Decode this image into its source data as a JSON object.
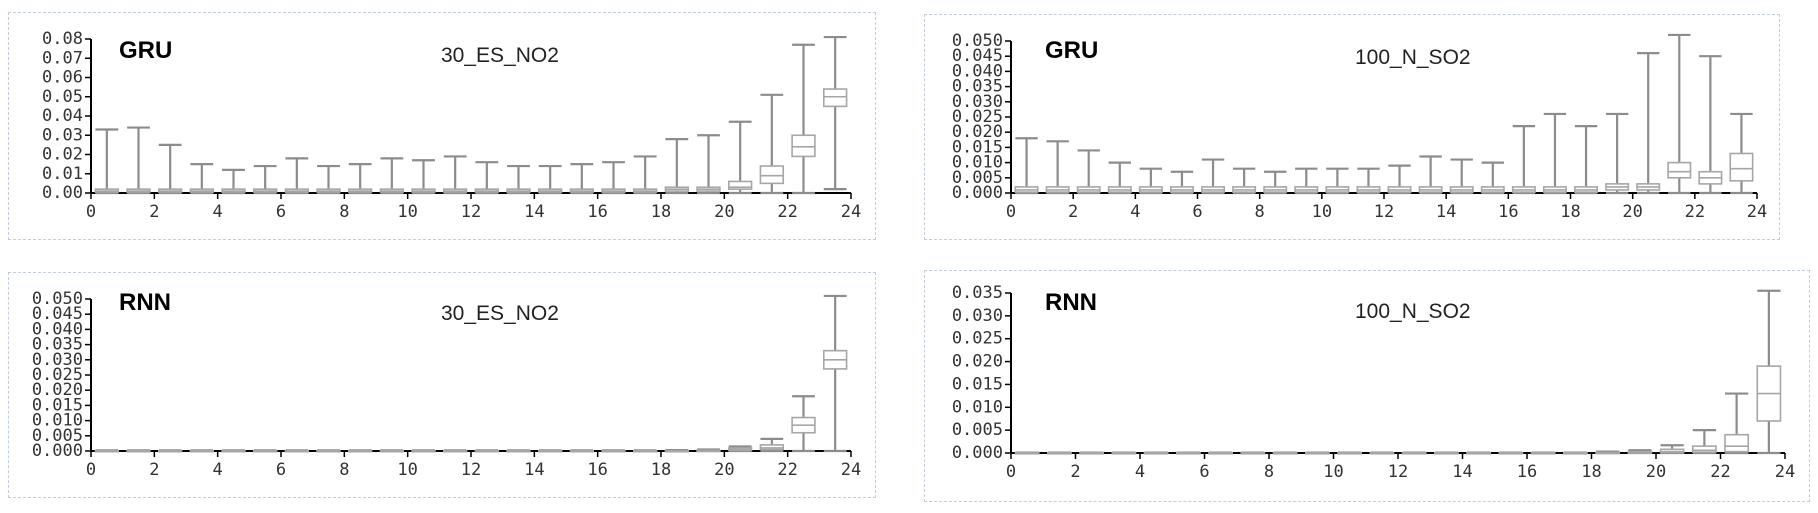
{
  "chart_data": [
    {
      "type": "box",
      "model": "GRU",
      "title": "30_ES_NO2",
      "xlabel": "",
      "ylabel": "",
      "xlim": [
        0,
        24
      ],
      "x_ticks": [
        0,
        2,
        4,
        6,
        8,
        10,
        12,
        14,
        16,
        18,
        20,
        22,
        24
      ],
      "ylim": [
        0,
        0.08
      ],
      "y_ticks": [
        "0.00",
        "0.01",
        "0.02",
        "0.03",
        "0.04",
        "0.05",
        "0.06",
        "0.07",
        "0.08"
      ],
      "y_tick_values": [
        0,
        0.01,
        0.02,
        0.03,
        0.04,
        0.05,
        0.06,
        0.07,
        0.08
      ],
      "grid": false,
      "boxes": [
        {
          "x": 0,
          "low": 0,
          "q1": 0.0005,
          "median": 0.001,
          "q3": 0.002,
          "high": 0.033
        },
        {
          "x": 1,
          "low": 0,
          "q1": 0.0005,
          "median": 0.001,
          "q3": 0.002,
          "high": 0.034
        },
        {
          "x": 2,
          "low": 0,
          "q1": 0.0005,
          "median": 0.001,
          "q3": 0.002,
          "high": 0.025
        },
        {
          "x": 3,
          "low": 0,
          "q1": 0.0005,
          "median": 0.001,
          "q3": 0.002,
          "high": 0.015
        },
        {
          "x": 4,
          "low": 0,
          "q1": 0.0005,
          "median": 0.001,
          "q3": 0.002,
          "high": 0.012
        },
        {
          "x": 5,
          "low": 0,
          "q1": 0.0005,
          "median": 0.001,
          "q3": 0.002,
          "high": 0.014
        },
        {
          "x": 6,
          "low": 0,
          "q1": 0.0005,
          "median": 0.001,
          "q3": 0.002,
          "high": 0.018
        },
        {
          "x": 7,
          "low": 0,
          "q1": 0.0005,
          "median": 0.001,
          "q3": 0.002,
          "high": 0.014
        },
        {
          "x": 8,
          "low": 0,
          "q1": 0.0005,
          "median": 0.001,
          "q3": 0.002,
          "high": 0.015
        },
        {
          "x": 9,
          "low": 0,
          "q1": 0.0005,
          "median": 0.001,
          "q3": 0.002,
          "high": 0.018
        },
        {
          "x": 10,
          "low": 0,
          "q1": 0.0005,
          "median": 0.001,
          "q3": 0.002,
          "high": 0.017
        },
        {
          "x": 11,
          "low": 0,
          "q1": 0.0005,
          "median": 0.001,
          "q3": 0.002,
          "high": 0.019
        },
        {
          "x": 12,
          "low": 0,
          "q1": 0.0005,
          "median": 0.001,
          "q3": 0.002,
          "high": 0.016
        },
        {
          "x": 13,
          "low": 0,
          "q1": 0.0005,
          "median": 0.001,
          "q3": 0.002,
          "high": 0.014
        },
        {
          "x": 14,
          "low": 0,
          "q1": 0.0005,
          "median": 0.001,
          "q3": 0.002,
          "high": 0.014
        },
        {
          "x": 15,
          "low": 0,
          "q1": 0.0005,
          "median": 0.001,
          "q3": 0.002,
          "high": 0.015
        },
        {
          "x": 16,
          "low": 0,
          "q1": 0.0005,
          "median": 0.001,
          "q3": 0.002,
          "high": 0.016
        },
        {
          "x": 17,
          "low": 0,
          "q1": 0.0005,
          "median": 0.001,
          "q3": 0.002,
          "high": 0.019
        },
        {
          "x": 18,
          "low": 0,
          "q1": 0.001,
          "median": 0.002,
          "q3": 0.003,
          "high": 0.028
        },
        {
          "x": 19,
          "low": 0,
          "q1": 0.001,
          "median": 0.002,
          "q3": 0.003,
          "high": 0.03
        },
        {
          "x": 20,
          "low": 0,
          "q1": 0.002,
          "median": 0.003,
          "q3": 0.006,
          "high": 0.037
        },
        {
          "x": 21,
          "low": 0,
          "q1": 0.005,
          "median": 0.009,
          "q3": 0.014,
          "high": 0.051
        },
        {
          "x": 22,
          "low": 0,
          "q1": 0.019,
          "median": 0.024,
          "q3": 0.03,
          "high": 0.077
        },
        {
          "x": 23,
          "low": 0.002,
          "q1": 0.045,
          "median": 0.05,
          "q3": 0.054,
          "high": 0.081
        }
      ]
    },
    {
      "type": "box",
      "model": "GRU",
      "title": "100_N_SO2",
      "xlabel": "",
      "ylabel": "",
      "xlim": [
        0,
        24
      ],
      "x_ticks": [
        0,
        2,
        4,
        6,
        8,
        10,
        12,
        14,
        16,
        18,
        20,
        22,
        24
      ],
      "ylim": [
        0,
        0.05
      ],
      "y_ticks": [
        "0.000",
        "0.005",
        "0.010",
        "0.015",
        "0.020",
        "0.025",
        "0.030",
        "0.035",
        "0.040",
        "0.045",
        "0.050"
      ],
      "y_tick_values": [
        0,
        0.005,
        0.01,
        0.015,
        0.02,
        0.025,
        0.03,
        0.035,
        0.04,
        0.045,
        0.05
      ],
      "grid": false,
      "boxes": [
        {
          "x": 0,
          "low": 0,
          "q1": 0.0003,
          "median": 0.001,
          "q3": 0.002,
          "high": 0.018
        },
        {
          "x": 1,
          "low": 0,
          "q1": 0.0003,
          "median": 0.001,
          "q3": 0.002,
          "high": 0.017
        },
        {
          "x": 2,
          "low": 0,
          "q1": 0.0003,
          "median": 0.001,
          "q3": 0.002,
          "high": 0.014
        },
        {
          "x": 3,
          "low": 0,
          "q1": 0.0003,
          "median": 0.001,
          "q3": 0.002,
          "high": 0.01
        },
        {
          "x": 4,
          "low": 0,
          "q1": 0.0003,
          "median": 0.001,
          "q3": 0.002,
          "high": 0.008
        },
        {
          "x": 5,
          "low": 0,
          "q1": 0.0003,
          "median": 0.001,
          "q3": 0.002,
          "high": 0.007
        },
        {
          "x": 6,
          "low": 0,
          "q1": 0.0003,
          "median": 0.001,
          "q3": 0.002,
          "high": 0.011
        },
        {
          "x": 7,
          "low": 0,
          "q1": 0.0003,
          "median": 0.001,
          "q3": 0.002,
          "high": 0.008
        },
        {
          "x": 8,
          "low": 0,
          "q1": 0.0003,
          "median": 0.001,
          "q3": 0.002,
          "high": 0.007
        },
        {
          "x": 9,
          "low": 0,
          "q1": 0.0003,
          "median": 0.001,
          "q3": 0.002,
          "high": 0.008
        },
        {
          "x": 10,
          "low": 0,
          "q1": 0.0003,
          "median": 0.001,
          "q3": 0.002,
          "high": 0.008
        },
        {
          "x": 11,
          "low": 0,
          "q1": 0.0003,
          "median": 0.001,
          "q3": 0.002,
          "high": 0.008
        },
        {
          "x": 12,
          "low": 0,
          "q1": 0.0003,
          "median": 0.001,
          "q3": 0.002,
          "high": 0.009
        },
        {
          "x": 13,
          "low": 0,
          "q1": 0.0003,
          "median": 0.001,
          "q3": 0.002,
          "high": 0.012
        },
        {
          "x": 14,
          "low": 0,
          "q1": 0.0003,
          "median": 0.001,
          "q3": 0.002,
          "high": 0.011
        },
        {
          "x": 15,
          "low": 0,
          "q1": 0.0003,
          "median": 0.001,
          "q3": 0.002,
          "high": 0.01
        },
        {
          "x": 16,
          "low": 0,
          "q1": 0.0003,
          "median": 0.001,
          "q3": 0.002,
          "high": 0.022
        },
        {
          "x": 17,
          "low": 0,
          "q1": 0.0003,
          "median": 0.001,
          "q3": 0.002,
          "high": 0.026
        },
        {
          "x": 18,
          "low": 0,
          "q1": 0.0003,
          "median": 0.001,
          "q3": 0.002,
          "high": 0.022
        },
        {
          "x": 19,
          "low": 0,
          "q1": 0.001,
          "median": 0.002,
          "q3": 0.003,
          "high": 0.026
        },
        {
          "x": 20,
          "low": 0,
          "q1": 0.001,
          "median": 0.002,
          "q3": 0.003,
          "high": 0.046
        },
        {
          "x": 21,
          "low": 0,
          "q1": 0.005,
          "median": 0.007,
          "q3": 0.01,
          "high": 0.052
        },
        {
          "x": 22,
          "low": 0,
          "q1": 0.003,
          "median": 0.005,
          "q3": 0.007,
          "high": 0.045
        },
        {
          "x": 23,
          "low": 0,
          "q1": 0.004,
          "median": 0.008,
          "q3": 0.013,
          "high": 0.026
        }
      ]
    },
    {
      "type": "box",
      "model": "RNN",
      "title": "30_ES_NO2",
      "xlabel": "",
      "ylabel": "",
      "xlim": [
        0,
        24
      ],
      "x_ticks": [
        0,
        2,
        4,
        6,
        8,
        10,
        12,
        14,
        16,
        18,
        20,
        22,
        24
      ],
      "ylim": [
        0,
        0.05
      ],
      "y_ticks": [
        "0.000",
        "0.005",
        "0.010",
        "0.015",
        "0.020",
        "0.025",
        "0.030",
        "0.035",
        "0.040",
        "0.045",
        "0.050"
      ],
      "y_tick_values": [
        0,
        0.005,
        0.01,
        0.015,
        0.02,
        0.025,
        0.03,
        0.035,
        0.04,
        0.045,
        0.05
      ],
      "grid": false,
      "boxes": [
        {
          "x": 0,
          "low": 0,
          "q1": 0,
          "median": 0,
          "q3": 0.0001,
          "high": 0.0002
        },
        {
          "x": 1,
          "low": 0,
          "q1": 0,
          "median": 0,
          "q3": 0.0001,
          "high": 0.0002
        },
        {
          "x": 2,
          "low": 0,
          "q1": 0,
          "median": 0,
          "q3": 0.0001,
          "high": 0.0002
        },
        {
          "x": 3,
          "low": 0,
          "q1": 0,
          "median": 0,
          "q3": 0.0001,
          "high": 0.0002
        },
        {
          "x": 4,
          "low": 0,
          "q1": 0,
          "median": 0,
          "q3": 0.0001,
          "high": 0.0002
        },
        {
          "x": 5,
          "low": 0,
          "q1": 0,
          "median": 0,
          "q3": 0.0001,
          "high": 0.0002
        },
        {
          "x": 6,
          "low": 0,
          "q1": 0,
          "median": 0,
          "q3": 0.0001,
          "high": 0.0002
        },
        {
          "x": 7,
          "low": 0,
          "q1": 0,
          "median": 0,
          "q3": 0.0001,
          "high": 0.0002
        },
        {
          "x": 8,
          "low": 0,
          "q1": 0,
          "median": 0,
          "q3": 0.0001,
          "high": 0.0002
        },
        {
          "x": 9,
          "low": 0,
          "q1": 0,
          "median": 0,
          "q3": 0.0001,
          "high": 0.0002
        },
        {
          "x": 10,
          "low": 0,
          "q1": 0,
          "median": 0,
          "q3": 0.0001,
          "high": 0.0002
        },
        {
          "x": 11,
          "low": 0,
          "q1": 0,
          "median": 0,
          "q3": 0.0001,
          "high": 0.0002
        },
        {
          "x": 12,
          "low": 0,
          "q1": 0,
          "median": 0,
          "q3": 0.0001,
          "high": 0.0002
        },
        {
          "x": 13,
          "low": 0,
          "q1": 0,
          "median": 0,
          "q3": 0.0001,
          "high": 0.0002
        },
        {
          "x": 14,
          "low": 0,
          "q1": 0,
          "median": 0,
          "q3": 0.0001,
          "high": 0.0002
        },
        {
          "x": 15,
          "low": 0,
          "q1": 0,
          "median": 0,
          "q3": 0.0001,
          "high": 0.0002
        },
        {
          "x": 16,
          "low": 0,
          "q1": 0,
          "median": 0,
          "q3": 0.0001,
          "high": 0.0002
        },
        {
          "x": 17,
          "low": 0,
          "q1": 0,
          "median": 0,
          "q3": 0.0001,
          "high": 0.0002
        },
        {
          "x": 18,
          "low": 0,
          "q1": 0,
          "median": 0,
          "q3": 0.0001,
          "high": 0.0003
        },
        {
          "x": 19,
          "low": 0,
          "q1": 0,
          "median": 0.0001,
          "q3": 0.0002,
          "high": 0.0005
        },
        {
          "x": 20,
          "low": 0,
          "q1": 0.0002,
          "median": 0.0005,
          "q3": 0.001,
          "high": 0.0015
        },
        {
          "x": 21,
          "low": 0,
          "q1": 0.0005,
          "median": 0.001,
          "q3": 0.002,
          "high": 0.004
        },
        {
          "x": 22,
          "low": 0,
          "q1": 0.006,
          "median": 0.0085,
          "q3": 0.011,
          "high": 0.018
        },
        {
          "x": 23,
          "low": 0,
          "q1": 0.027,
          "median": 0.03,
          "q3": 0.033,
          "high": 0.051
        }
      ]
    },
    {
      "type": "box",
      "model": "RNN",
      "title": "100_N_SO2",
      "xlabel": "",
      "ylabel": "",
      "xlim": [
        0,
        24
      ],
      "x_ticks": [
        0,
        2,
        4,
        6,
        8,
        10,
        12,
        14,
        16,
        18,
        20,
        22,
        24
      ],
      "ylim": [
        0,
        0.035
      ],
      "y_ticks": [
        "0.000",
        "0.005",
        "0.010",
        "0.015",
        "0.020",
        "0.025",
        "0.030",
        "0.035"
      ],
      "y_tick_values": [
        0,
        0.005,
        0.01,
        0.015,
        0.02,
        0.025,
        0.03,
        0.035
      ],
      "grid": false,
      "boxes": [
        {
          "x": 0,
          "low": 0,
          "q1": 0,
          "median": 0,
          "q3": 5e-05,
          "high": 0.0001
        },
        {
          "x": 1,
          "low": 0,
          "q1": 0,
          "median": 0,
          "q3": 5e-05,
          "high": 0.0001
        },
        {
          "x": 2,
          "low": 0,
          "q1": 0,
          "median": 0,
          "q3": 5e-05,
          "high": 0.0001
        },
        {
          "x": 3,
          "low": 0,
          "q1": 0,
          "median": 0,
          "q3": 5e-05,
          "high": 0.0001
        },
        {
          "x": 4,
          "low": 0,
          "q1": 0,
          "median": 0,
          "q3": 5e-05,
          "high": 0.0001
        },
        {
          "x": 5,
          "low": 0,
          "q1": 0,
          "median": 0,
          "q3": 5e-05,
          "high": 0.0001
        },
        {
          "x": 6,
          "low": 0,
          "q1": 0,
          "median": 0,
          "q3": 5e-05,
          "high": 0.0001
        },
        {
          "x": 7,
          "low": 0,
          "q1": 0,
          "median": 0,
          "q3": 5e-05,
          "high": 0.0001
        },
        {
          "x": 8,
          "low": 0,
          "q1": 0,
          "median": 0,
          "q3": 5e-05,
          "high": 0.0001
        },
        {
          "x": 9,
          "low": 0,
          "q1": 0,
          "median": 0,
          "q3": 5e-05,
          "high": 0.0001
        },
        {
          "x": 10,
          "low": 0,
          "q1": 0,
          "median": 0,
          "q3": 5e-05,
          "high": 0.0001
        },
        {
          "x": 11,
          "low": 0,
          "q1": 0,
          "median": 0,
          "q3": 5e-05,
          "high": 0.0001
        },
        {
          "x": 12,
          "low": 0,
          "q1": 0,
          "median": 0,
          "q3": 5e-05,
          "high": 0.0001
        },
        {
          "x": 13,
          "low": 0,
          "q1": 0,
          "median": 0,
          "q3": 5e-05,
          "high": 0.0001
        },
        {
          "x": 14,
          "low": 0,
          "q1": 0,
          "median": 0,
          "q3": 5e-05,
          "high": 0.0001
        },
        {
          "x": 15,
          "low": 0,
          "q1": 0,
          "median": 0,
          "q3": 5e-05,
          "high": 0.0001
        },
        {
          "x": 16,
          "low": 0,
          "q1": 0,
          "median": 0,
          "q3": 5e-05,
          "high": 0.0001
        },
        {
          "x": 17,
          "low": 0,
          "q1": 0,
          "median": 0,
          "q3": 5e-05,
          "high": 0.0001
        },
        {
          "x": 18,
          "low": 0,
          "q1": 0,
          "median": 0,
          "q3": 0.0001,
          "high": 0.0003
        },
        {
          "x": 19,
          "low": 0,
          "q1": 0,
          "median": 0.0001,
          "q3": 0.0003,
          "high": 0.0006
        },
        {
          "x": 20,
          "low": 0,
          "q1": 0.0001,
          "median": 0.0003,
          "q3": 0.0008,
          "high": 0.0017
        },
        {
          "x": 21,
          "low": 0,
          "q1": 0.0002,
          "median": 0.0006,
          "q3": 0.0015,
          "high": 0.005
        },
        {
          "x": 22,
          "low": 0,
          "q1": 0.0003,
          "median": 0.0015,
          "q3": 0.004,
          "high": 0.013
        },
        {
          "x": 23,
          "low": 0,
          "q1": 0.007,
          "median": 0.013,
          "q3": 0.019,
          "high": 0.0355
        }
      ]
    }
  ],
  "colors": {
    "box_stroke": "#a6a6a6",
    "whisker_stroke": "#8c8c8c",
    "axis": "#000000",
    "panel_border": "#c2cce0"
  }
}
